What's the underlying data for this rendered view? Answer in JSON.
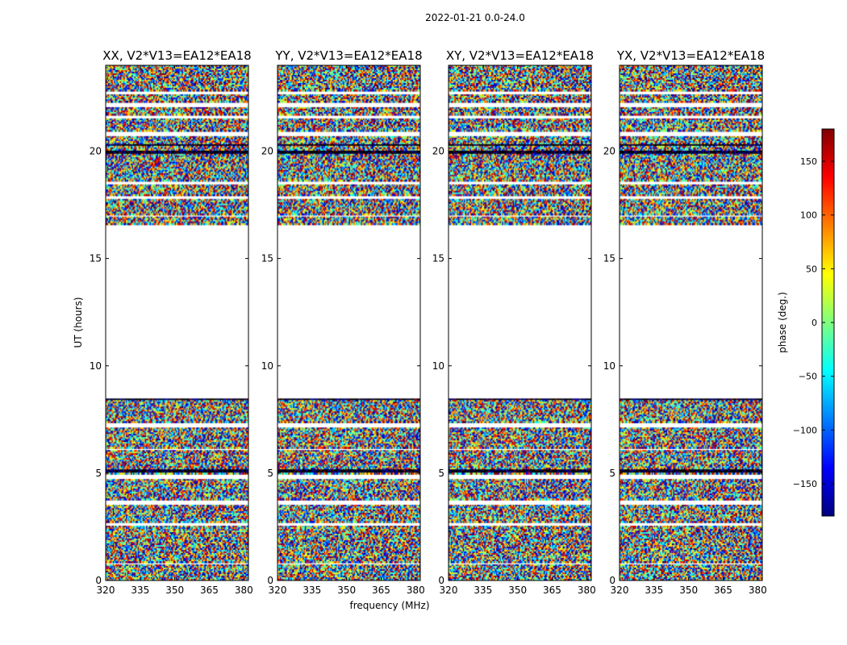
{
  "figure": {
    "suptitle": "2022-01-21 0.0-24.0",
    "xlabel": "frequency (MHz)",
    "ylabel": "UT (hours)",
    "colorbar_label": "phase (deg.)",
    "colormap": "jet",
    "colormap_stops": [
      "#00007f",
      "#0000ff",
      "#007fff",
      "#00ffff",
      "#7fff7f",
      "#ffff00",
      "#ff7f00",
      "#ff0000",
      "#7f0000"
    ]
  },
  "chart_data": {
    "type": "heatmap",
    "panels": [
      {
        "title": "XX, V2*V13=EA12*EA18"
      },
      {
        "title": "YY, V2*V13=EA12*EA18"
      },
      {
        "title": "XY, V2*V13=EA12*EA18"
      },
      {
        "title": "YX, V2*V13=EA12*EA18"
      }
    ],
    "xlim": [
      320,
      382
    ],
    "ylim": [
      0,
      24
    ],
    "xticks": [
      320,
      335,
      350,
      365,
      380
    ],
    "yticks": [
      0,
      5,
      10,
      15,
      20
    ],
    "colorbar": {
      "vmin": -180,
      "vmax": 180,
      "ticks": [
        150,
        100,
        50,
        0,
        -50,
        -100,
        -150
      ]
    },
    "empty_ut_ranges": [
      [
        8.5,
        16.6
      ]
    ],
    "blank_ut_bands": [
      [
        0.75,
        0.85
      ],
      [
        2.55,
        2.7
      ],
      [
        3.55,
        3.75
      ],
      [
        4.75,
        4.95
      ],
      [
        6.05,
        6.15
      ],
      [
        7.1,
        7.35
      ],
      [
        16.95,
        17.05
      ],
      [
        17.75,
        17.9
      ],
      [
        18.45,
        18.6
      ],
      [
        20.7,
        20.95
      ],
      [
        21.55,
        21.7
      ],
      [
        22.05,
        22.3
      ],
      [
        22.65,
        22.8
      ]
    ],
    "dark_ut_bands": [
      [
        5.0,
        5.15
      ],
      [
        8.4,
        8.5
      ],
      [
        19.9,
        20.05
      ],
      [
        20.25,
        20.35
      ]
    ]
  }
}
